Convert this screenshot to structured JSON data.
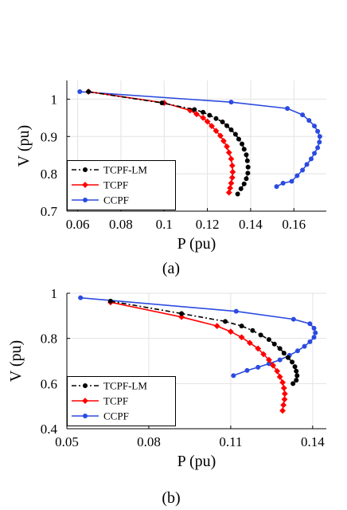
{
  "chart_data": [
    {
      "type": "line",
      "caption": "(a)",
      "xlabel": "P (pu)",
      "ylabel": "V (pu)",
      "xlim": [
        0.055,
        0.175
      ],
      "ylim": [
        0.7,
        1.05
      ],
      "xticks": [
        0.06,
        0.08,
        0.1,
        0.12,
        0.14,
        0.16
      ],
      "xtick_labels": [
        "0.06",
        "0.08",
        "0.1",
        "0.12",
        "0.14",
        "0.16"
      ],
      "yticks": [
        0.7,
        0.8,
        0.9,
        1.0
      ],
      "ytick_labels": [
        "0.7",
        "0.8",
        "0.9",
        "1"
      ],
      "grid": true,
      "legend_position": "bottom-left",
      "series": [
        {
          "name": "TCPF-LM",
          "color": "#000000",
          "marker": "circle",
          "dash": "6,3,2,3",
          "points": [
            [
              0.065,
              1.02
            ],
            [
              0.099,
              0.99
            ],
            [
              0.114,
              0.972
            ],
            [
              0.118,
              0.965
            ],
            [
              0.121,
              0.957
            ],
            [
              0.124,
              0.948
            ],
            [
              0.127,
              0.939
            ],
            [
              0.129,
              0.929
            ],
            [
              0.131,
              0.918
            ],
            [
              0.133,
              0.906
            ],
            [
              0.1345,
              0.893
            ],
            [
              0.136,
              0.88
            ],
            [
              0.137,
              0.866
            ],
            [
              0.138,
              0.851
            ],
            [
              0.1385,
              0.835
            ],
            [
              0.1388,
              0.818
            ],
            [
              0.1387,
              0.802
            ],
            [
              0.138,
              0.787
            ],
            [
              0.137,
              0.773
            ],
            [
              0.1355,
              0.76
            ],
            [
              0.134,
              0.746
            ]
          ]
        },
        {
          "name": "TCPF",
          "color": "#ff0000",
          "marker": "diamond",
          "dash": "",
          "points": [
            [
              0.065,
              1.02
            ],
            [
              0.1,
              0.99
            ],
            [
              0.112,
              0.97
            ],
            [
              0.115,
              0.96
            ],
            [
              0.118,
              0.95
            ],
            [
              0.12,
              0.94
            ],
            [
              0.122,
              0.928
            ],
            [
              0.124,
              0.915
            ],
            [
              0.126,
              0.902
            ],
            [
              0.1275,
              0.888
            ],
            [
              0.129,
              0.873
            ],
            [
              0.13,
              0.857
            ],
            [
              0.131,
              0.84
            ],
            [
              0.1315,
              0.822
            ],
            [
              0.1317,
              0.805
            ],
            [
              0.1315,
              0.79
            ],
            [
              0.131,
              0.775
            ],
            [
              0.1305,
              0.762
            ],
            [
              0.13,
              0.75
            ]
          ]
        },
        {
          "name": "CCPF",
          "color": "#2b4be0",
          "marker": "circle",
          "dash": "",
          "points": [
            [
              0.061,
              1.02
            ],
            [
              0.131,
              0.992
            ],
            [
              0.157,
              0.975
            ],
            [
              0.164,
              0.958
            ],
            [
              0.167,
              0.943
            ],
            [
              0.1695,
              0.928
            ],
            [
              0.171,
              0.914
            ],
            [
              0.172,
              0.9
            ],
            [
              0.1718,
              0.885
            ],
            [
              0.171,
              0.87
            ],
            [
              0.1695,
              0.855
            ],
            [
              0.168,
              0.84
            ],
            [
              0.166,
              0.825
            ],
            [
              0.164,
              0.81
            ],
            [
              0.1615,
              0.795
            ],
            [
              0.159,
              0.78
            ],
            [
              0.155,
              0.775
            ],
            [
              0.152,
              0.766
            ]
          ]
        }
      ]
    },
    {
      "type": "line",
      "caption": "(b)",
      "xlabel": "P (pu)",
      "ylabel": "V (pu)",
      "xlim": [
        0.05,
        0.145
      ],
      "ylim": [
        0.4,
        1.0
      ],
      "xticks": [
        0.05,
        0.08,
        0.11,
        0.14
      ],
      "xtick_labels": [
        "0.05",
        "0.08",
        "0.11",
        "0.14"
      ],
      "yticks": [
        0.4,
        0.6,
        0.8,
        1.0
      ],
      "ytick_labels": [
        "0.4",
        "0.6",
        "0.8",
        "1"
      ],
      "grid": true,
      "legend_position": "bottom-left",
      "series": [
        {
          "name": "TCPF-LM",
          "color": "#000000",
          "marker": "circle",
          "dash": "6,3,2,3",
          "points": [
            [
              0.066,
              0.965
            ],
            [
              0.092,
              0.91
            ],
            [
              0.108,
              0.875
            ],
            [
              0.114,
              0.855
            ],
            [
              0.118,
              0.835
            ],
            [
              0.121,
              0.815
            ],
            [
              0.124,
              0.795
            ],
            [
              0.126,
              0.775
            ],
            [
              0.128,
              0.755
            ],
            [
              0.1295,
              0.735
            ],
            [
              0.131,
              0.715
            ],
            [
              0.1325,
              0.695
            ],
            [
              0.1335,
              0.675
            ],
            [
              0.134,
              0.655
            ],
            [
              0.1343,
              0.635
            ],
            [
              0.134,
              0.615
            ],
            [
              0.1328,
              0.6
            ]
          ]
        },
        {
          "name": "TCPF",
          "color": "#ff0000",
          "marker": "diamond",
          "dash": "",
          "points": [
            [
              0.066,
              0.96
            ],
            [
              0.092,
              0.895
            ],
            [
              0.105,
              0.855
            ],
            [
              0.11,
              0.83
            ],
            [
              0.114,
              0.805
            ],
            [
              0.117,
              0.78
            ],
            [
              0.12,
              0.755
            ],
            [
              0.122,
              0.73
            ],
            [
              0.124,
              0.705
            ],
            [
              0.1255,
              0.68
            ],
            [
              0.127,
              0.655
            ],
            [
              0.128,
              0.63
            ],
            [
              0.129,
              0.605
            ],
            [
              0.1295,
              0.58
            ],
            [
              0.1298,
              0.555
            ],
            [
              0.1297,
              0.53
            ],
            [
              0.1293,
              0.505
            ],
            [
              0.129,
              0.48
            ]
          ]
        },
        {
          "name": "CCPF",
          "color": "#2b4be0",
          "marker": "circle",
          "dash": "",
          "points": [
            [
              0.055,
              0.98
            ],
            [
              0.112,
              0.92
            ],
            [
              0.133,
              0.885
            ],
            [
              0.139,
              0.865
            ],
            [
              0.1405,
              0.845
            ],
            [
              0.141,
              0.825
            ],
            [
              0.1405,
              0.805
            ],
            [
              0.139,
              0.785
            ],
            [
              0.137,
              0.765
            ],
            [
              0.1345,
              0.745
            ],
            [
              0.1315,
              0.725
            ],
            [
              0.128,
              0.705
            ],
            [
              0.124,
              0.688
            ],
            [
              0.12,
              0.672
            ],
            [
              0.116,
              0.658
            ],
            [
              0.111,
              0.635
            ]
          ]
        }
      ]
    }
  ]
}
